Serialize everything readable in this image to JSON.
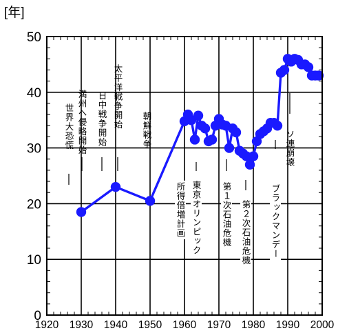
{
  "chart_data": {
    "type": "line",
    "ylabel": "[年]",
    "xlim": [
      1920,
      2000
    ],
    "ylim": [
      0,
      50
    ],
    "x_ticks": [
      1920,
      1930,
      1940,
      1950,
      1960,
      1970,
      1980,
      1990,
      2000
    ],
    "y_ticks": [
      0,
      10,
      20,
      30,
      40,
      50
    ],
    "grid": true,
    "line_color": "#1a1aff",
    "x": [
      1930,
      1940,
      1950,
      1960,
      1961,
      1962,
      1963,
      1964,
      1965,
      1966,
      1967,
      1968,
      1969,
      1970,
      1971,
      1972,
      1973,
      1974,
      1975,
      1976,
      1977,
      1978,
      1979,
      1980,
      1981,
      1982,
      1983,
      1984,
      1985,
      1986,
      1987,
      1988,
      1989,
      1990,
      1991,
      1992,
      1993,
      1994,
      1995,
      1996,
      1997,
      1998,
      1999
    ],
    "values": [
      18.5,
      23,
      20.5,
      34.8,
      36,
      35,
      31.5,
      35.8,
      34,
      33.5,
      31.2,
      31.5,
      34,
      35.2,
      34.2,
      34,
      30,
      33.5,
      32.8,
      29.5,
      29,
      28.5,
      27,
      28.5,
      31.2,
      32.5,
      33,
      33.5,
      34.5,
      34.5,
      34,
      43.5,
      44,
      46,
      45.5,
      46,
      45.8,
      45,
      45,
      44.5,
      43,
      43,
      43
    ],
    "annotations": [
      {
        "text": "世界大恐慌",
        "year": 1929
      },
      {
        "text": "満州へ侵略開始",
        "year": 1931
      },
      {
        "text": "日中戦争開始",
        "year": 1937
      },
      {
        "text": "太平洋戦争開始",
        "year": 1941
      },
      {
        "text": "朝鮮戦争",
        "year": 1950
      },
      {
        "text": "所得倍増計画",
        "year": 1960
      },
      {
        "text": "東京オリンピック",
        "year": 1964
      },
      {
        "text": "第１次石油危機",
        "year": 1973
      },
      {
        "text": "第２次石油危機",
        "year": 1979
      },
      {
        "text": "ブラックマンデー",
        "year": 1987
      },
      {
        "text": "ソ連崩壊",
        "year": 1991
      }
    ]
  }
}
